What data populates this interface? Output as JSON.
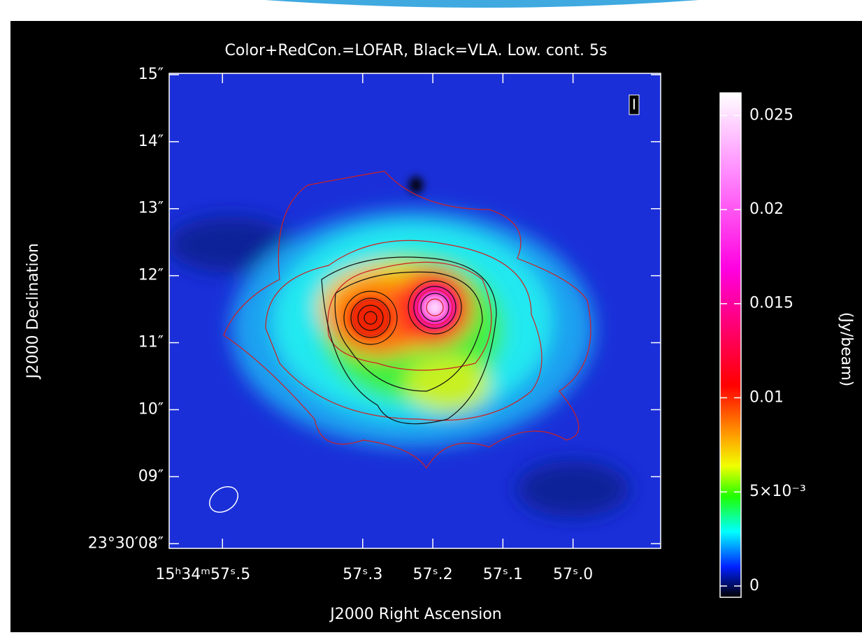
{
  "chart_data": {
    "type": "image",
    "title": "Color+RedCon.=LOFAR, Black=VLA. Low. cont. 5s",
    "x_label": "J2000 Right Ascension",
    "y_label": "J2000 Declination",
    "stokes": "I",
    "xlim": [
      57.576,
      56.875
    ],
    "xticks": [
      {
        "value": 57.5,
        "label": "15ʰ34ᵐ57ˢ.5"
      },
      {
        "value": 57.3,
        "label": "57ˢ.3"
      },
      {
        "value": 57.2,
        "label": "57ˢ.2"
      },
      {
        "value": 57.1,
        "label": "57ˢ.1"
      },
      {
        "value": 57.0,
        "label": "57ˢ.0"
      }
    ],
    "ylim": [
      7.93,
      15.02
    ],
    "yticks": [
      {
        "value": 15,
        "label": "15″"
      },
      {
        "value": 14,
        "label": "14″"
      },
      {
        "value": 13,
        "label": "13″"
      },
      {
        "value": 12,
        "label": "12″"
      },
      {
        "value": 11,
        "label": "11″"
      },
      {
        "value": 10,
        "label": "10″"
      },
      {
        "value": 9,
        "label": "09″"
      },
      {
        "value": 8,
        "label": "23°30′08″"
      }
    ],
    "colorbar": {
      "label": "(Jy/beam)",
      "clim": [
        -0.0006,
        0.0262
      ],
      "ticks": [
        0,
        {
          "value": 0.005,
          "label": "5×10⁻³"
        },
        0.01,
        0.015,
        0.02,
        0.025
      ]
    }
  }
}
